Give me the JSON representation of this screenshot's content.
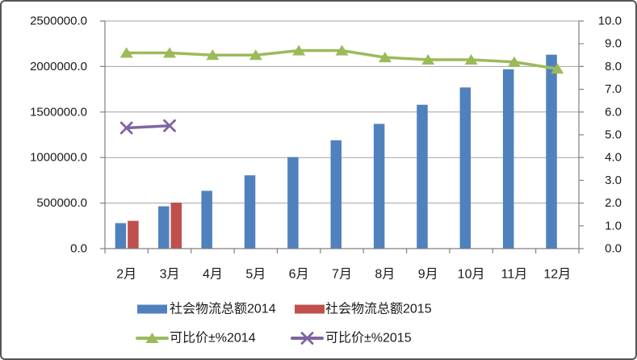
{
  "chart_data": {
    "type": "bar",
    "combo": "clustered columns on left axis + lines with markers on right axis",
    "title": "",
    "categories": [
      "2月",
      "3月",
      "4月",
      "5月",
      "6月",
      "7月",
      "8月",
      "9月",
      "10月",
      "11月",
      "12月"
    ],
    "series": [
      {
        "name": "社会物流总额2014",
        "type": "bar",
        "axis": "left",
        "color": "#4F81BD",
        "values": [
          280000,
          465000,
          635000,
          805000,
          1005000,
          1190000,
          1370000,
          1580000,
          1770000,
          1970000,
          2130000
        ]
      },
      {
        "name": "社会物流总额2015",
        "type": "bar",
        "axis": "left",
        "color": "#C0504D",
        "values": [
          305000,
          505000
        ]
      },
      {
        "name": "可比价±%2014",
        "type": "line",
        "marker": "triangle",
        "axis": "right",
        "color": "#9BBB59",
        "values": [
          8.6,
          8.6,
          8.5,
          8.5,
          8.7,
          8.7,
          8.4,
          8.3,
          8.3,
          8.2,
          7.9
        ]
      },
      {
        "name": "可比价±%2015",
        "type": "line",
        "marker": "x",
        "axis": "right",
        "color": "#8064A2",
        "values": [
          5.3,
          5.4
        ]
      }
    ],
    "y_left": {
      "min": 0,
      "max": 2500000,
      "ticks": [
        {
          "value": 0,
          "label": "0.0"
        },
        {
          "value": 500000,
          "label": "500000.0"
        },
        {
          "value": 1000000,
          "label": "1000000.0"
        },
        {
          "value": 1500000,
          "label": "1500000.0"
        },
        {
          "value": 2000000,
          "label": "2000000.0"
        },
        {
          "value": 2500000,
          "label": "2500000.0"
        }
      ]
    },
    "y_right": {
      "min": 0,
      "max": 10,
      "ticks": [
        {
          "value": 0,
          "label": "0.0"
        },
        {
          "value": 1,
          "label": "1.0"
        },
        {
          "value": 2,
          "label": "2.0"
        },
        {
          "value": 3,
          "label": "3.0"
        },
        {
          "value": 4,
          "label": "4.0"
        },
        {
          "value": 5,
          "label": "5.0"
        },
        {
          "value": 6,
          "label": "6.0"
        },
        {
          "value": 7,
          "label": "7.0"
        },
        {
          "value": 8,
          "label": "8.0"
        },
        {
          "value": 9,
          "label": "9.0"
        },
        {
          "value": 10,
          "label": "10.0"
        }
      ]
    },
    "grid": true,
    "legend_position": "bottom",
    "colors": {
      "gridline": "#A3A3A3",
      "axis": "#808080",
      "text": "#1A1A1A",
      "frame_border": "#565656",
      "background": "#FFFFFF"
    }
  }
}
